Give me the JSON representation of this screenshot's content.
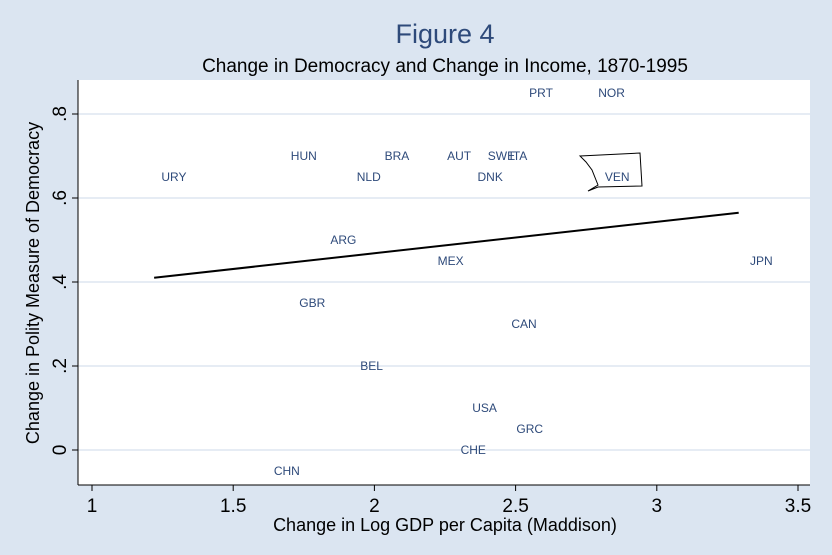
{
  "chart_data": {
    "type": "scatter",
    "figure_title": "Figure 4",
    "title": "Change in Democracy and Change in Income, 1870-1995",
    "xlabel": "Change in Log GDP per Capita (Maddison)",
    "ylabel": "Change in Polity Measure of Democracy",
    "xlim": [
      1,
      3.5
    ],
    "ylim": [
      -0.075,
      0.875
    ],
    "x_ticks": [
      "1",
      "1.5",
      "2",
      "2.5",
      "3",
      "3.5"
    ],
    "y_ticks": [
      "0",
      ".2",
      ".4",
      ".6",
      ".8"
    ],
    "grid": "horizontal",
    "points": [
      {
        "label": "PRT",
        "x": 2.59,
        "y": 0.85
      },
      {
        "label": "NOR",
        "x": 2.84,
        "y": 0.85
      },
      {
        "label": "HUN",
        "x": 1.75,
        "y": 0.7
      },
      {
        "label": "BRA",
        "x": 2.08,
        "y": 0.7
      },
      {
        "label": "AUT",
        "x": 2.3,
        "y": 0.7
      },
      {
        "label": "SWE",
        "x": 2.45,
        "y": 0.7
      },
      {
        "label": "ITA",
        "x": 2.51,
        "y": 0.7
      },
      {
        "label": "URY",
        "x": 1.29,
        "y": 0.65
      },
      {
        "label": "NLD",
        "x": 1.98,
        "y": 0.65
      },
      {
        "label": "DNK",
        "x": 2.41,
        "y": 0.65
      },
      {
        "label": "VEN",
        "x": 2.86,
        "y": 0.65
      },
      {
        "label": "ARG",
        "x": 1.89,
        "y": 0.5
      },
      {
        "label": "MEX",
        "x": 2.27,
        "y": 0.45
      },
      {
        "label": "JPN",
        "x": 3.37,
        "y": 0.45
      },
      {
        "label": "GBR",
        "x": 1.78,
        "y": 0.35
      },
      {
        "label": "CAN",
        "x": 2.53,
        "y": 0.3
      },
      {
        "label": "BEL",
        "x": 1.99,
        "y": 0.2
      },
      {
        "label": "USA",
        "x": 2.39,
        "y": 0.1
      },
      {
        "label": "GRC",
        "x": 2.55,
        "y": 0.05
      },
      {
        "label": "CHE",
        "x": 2.35,
        "y": 0.0
      },
      {
        "label": "CHN",
        "x": 1.69,
        "y": -0.05
      }
    ],
    "fit_line": {
      "x": [
        1.22,
        3.29
      ],
      "y": [
        0.41,
        0.565
      ]
    },
    "colors": {
      "background": "#dbe5f1",
      "plot_area": "#ffffff",
      "gridline": "#e6ecf4",
      "axis": "#000000",
      "point_label": "#2e4a7a",
      "figure_title": "#2e4a7a",
      "fit_line": "#000000",
      "text": "#000000"
    }
  }
}
